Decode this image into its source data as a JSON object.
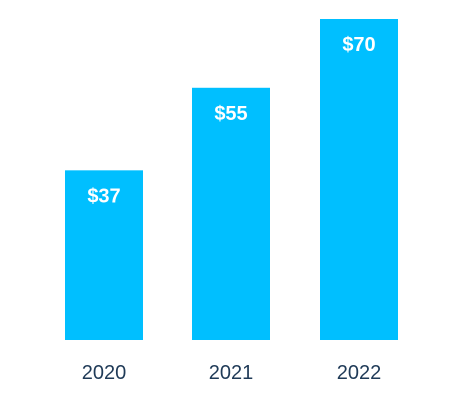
{
  "chart_data": {
    "type": "bar",
    "categories": [
      "2020",
      "2021",
      "2022"
    ],
    "values": [
      37,
      55,
      70
    ],
    "value_labels": [
      "$37",
      "$55",
      "$70"
    ],
    "title": "",
    "xlabel": "",
    "ylabel": "",
    "ylim": [
      0,
      70
    ],
    "grid": false,
    "legend": "none",
    "colors": {
      "bar": "#00BFFF",
      "value_label": "#FFFFFF",
      "tick_label": "#1F3A57"
    }
  }
}
